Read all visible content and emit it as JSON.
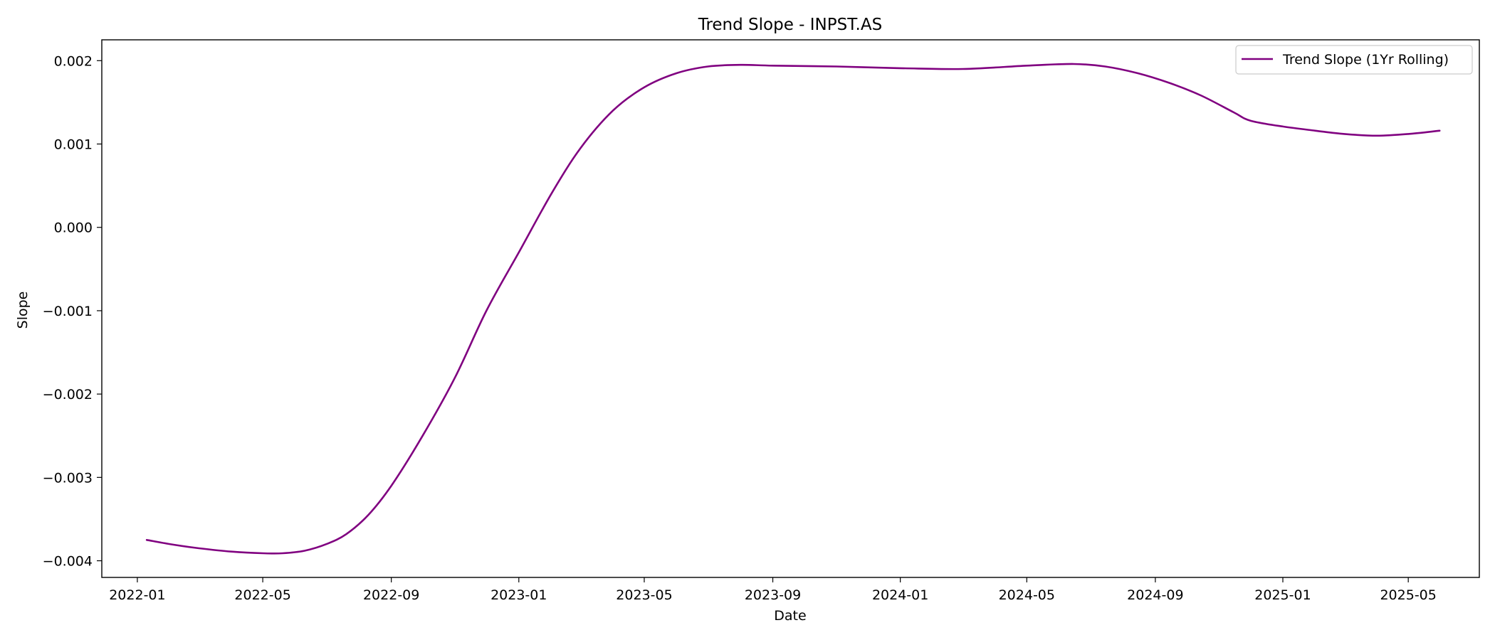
{
  "chart_data": {
    "type": "line",
    "title": "Trend Slope - INPST.AS",
    "xlabel": "Date",
    "ylabel": "Slope",
    "x_type": "date",
    "xlim": [
      "2021-11-28",
      "2025-07-08"
    ],
    "ylim": [
      -0.0042,
      0.00225
    ],
    "x_ticks": [
      "2022-01",
      "2022-05",
      "2022-09",
      "2023-01",
      "2023-05",
      "2023-09",
      "2024-01",
      "2024-05",
      "2024-09",
      "2025-01",
      "2025-05"
    ],
    "y_ticks": [
      -0.004,
      -0.003,
      -0.002,
      -0.001,
      0.0,
      0.001,
      0.002
    ],
    "y_tick_labels": [
      "−0.004",
      "−0.003",
      "−0.002",
      "−0.001",
      "0.000",
      "0.001",
      "0.002"
    ],
    "grid": false,
    "legend": {
      "placement": "top-right",
      "entries": [
        "Trend Slope (1Yr Rolling)"
      ]
    },
    "series": [
      {
        "name": "Trend Slope (1Yr Rolling)",
        "color": "#800080",
        "points": [
          [
            "2022-01-10",
            -0.00375
          ],
          [
            "2022-02-01",
            -0.0038
          ],
          [
            "2022-03-01",
            -0.00385
          ],
          [
            "2022-04-01",
            -0.00389
          ],
          [
            "2022-05-01",
            -0.00391
          ],
          [
            "2022-05-20",
            -0.00391
          ],
          [
            "2022-06-10",
            -0.00388
          ],
          [
            "2022-07-01",
            -0.0038
          ],
          [
            "2022-07-20",
            -0.00368
          ],
          [
            "2022-08-10",
            -0.00345
          ],
          [
            "2022-09-01",
            -0.0031
          ],
          [
            "2022-10-01",
            -0.0025
          ],
          [
            "2022-11-01",
            -0.0018
          ],
          [
            "2022-12-01",
            -0.001
          ],
          [
            "2023-01-01",
            -0.0003
          ],
          [
            "2023-02-01",
            0.0004
          ],
          [
            "2023-03-01",
            0.00095
          ],
          [
            "2023-04-01",
            0.0014
          ],
          [
            "2023-05-01",
            0.00168
          ],
          [
            "2023-06-01",
            0.00185
          ],
          [
            "2023-07-01",
            0.00193
          ],
          [
            "2023-08-01",
            0.00195
          ],
          [
            "2023-09-01",
            0.00194
          ],
          [
            "2023-11-01",
            0.00193
          ],
          [
            "2024-01-01",
            0.00191
          ],
          [
            "2024-03-01",
            0.0019
          ],
          [
            "2024-05-01",
            0.00194
          ],
          [
            "2024-06-15",
            0.00196
          ],
          [
            "2024-07-15",
            0.00193
          ],
          [
            "2024-08-15",
            0.00185
          ],
          [
            "2024-09-15",
            0.00173
          ],
          [
            "2024-10-15",
            0.00158
          ],
          [
            "2024-11-15",
            0.00138
          ],
          [
            "2024-12-01",
            0.00128
          ],
          [
            "2025-01-01",
            0.00121
          ],
          [
            "2025-02-01",
            0.00116
          ],
          [
            "2025-03-01",
            0.00112
          ],
          [
            "2025-04-01",
            0.0011
          ],
          [
            "2025-05-01",
            0.00112
          ],
          [
            "2025-05-31",
            0.00116
          ]
        ]
      }
    ]
  }
}
